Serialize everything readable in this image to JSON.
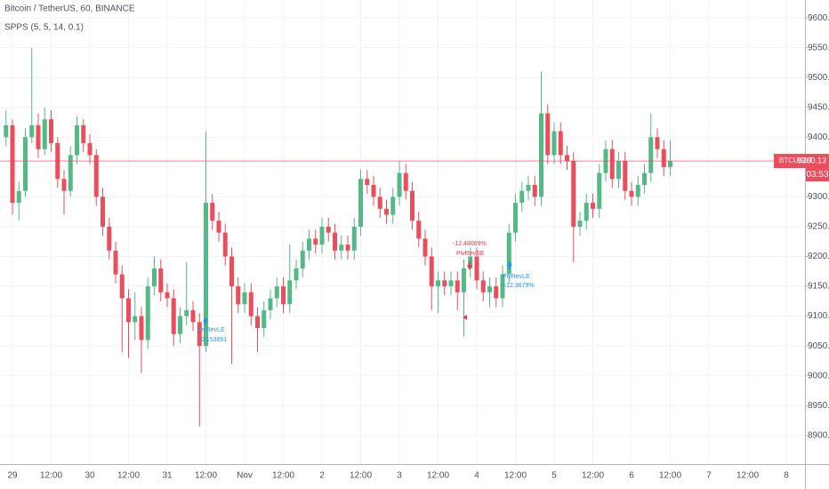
{
  "chart_data": {
    "type": "candlestick",
    "title": "Bitcoin / TetherUS, 60, BINANCE",
    "subtitle": "SPPS (5, 5, 14, 0.1)",
    "symbol": "BTCUSDT",
    "last_price": 9360.13,
    "countdown": "03:53",
    "up_color": "#53b987",
    "down_color": "#eb4d5c",
    "grid": true,
    "ylim": [
      8852,
      9630
    ],
    "yticks": [
      {
        "value": 8900,
        "label": "8900.00"
      },
      {
        "value": 8950,
        "label": "8950.00"
      },
      {
        "value": 9000,
        "label": "9000.00"
      },
      {
        "value": 9050,
        "label": "9050.00"
      },
      {
        "value": 9100,
        "label": "9100.00"
      },
      {
        "value": 9150,
        "label": "9150.00"
      },
      {
        "value": 9200,
        "label": "9200.00"
      },
      {
        "value": 9250,
        "label": "9250.00"
      },
      {
        "value": 9300,
        "label": "9300.00"
      },
      {
        "value": 9350,
        "label": "9350.00"
      },
      {
        "value": 9400,
        "label": "9400.00"
      },
      {
        "value": 9450,
        "label": "9450.00"
      },
      {
        "value": 9500,
        "label": "9500.00"
      },
      {
        "value": 9550,
        "label": "9550.00"
      },
      {
        "value": 9600,
        "label": "9600.00"
      }
    ],
    "annotations": [
      "PivRevLE",
      "+2.153851",
      "-12.48069%",
      "PivRevSE",
      "PivRevLE",
      "+12.3679%"
    ],
    "categories": [
      null,
      "29",
      null,
      null,
      null,
      null,
      null,
      "12:00",
      null,
      null,
      null,
      null,
      null,
      "30",
      null,
      null,
      null,
      null,
      null,
      "12:00",
      null,
      null,
      null,
      null,
      null,
      "31",
      null,
      null,
      null,
      null,
      null,
      "12:00",
      null,
      null,
      null,
      null,
      null,
      "Nov",
      null,
      null,
      null,
      null,
      null,
      "12:00",
      null,
      null,
      null,
      null,
      null,
      "2",
      null,
      null,
      null,
      null,
      null,
      "12:00",
      null,
      null,
      null,
      null,
      null,
      "3",
      null,
      null,
      null,
      null,
      null,
      "12:00",
      null,
      null,
      null,
      null,
      null,
      "4",
      null,
      null,
      null,
      null,
      null,
      "12:00",
      null,
      null,
      null,
      null,
      null,
      "5",
      null,
      null,
      null,
      null,
      null,
      "12:00",
      null,
      null,
      null,
      null,
      null,
      "6",
      null,
      null,
      null,
      null,
      null,
      "12:00",
      null,
      null,
      null,
      null,
      null,
      "7",
      null,
      null,
      null,
      null,
      null,
      "12:00",
      null,
      null,
      null,
      null,
      null,
      "8",
      null
    ],
    "open": [
      9400,
      9420,
      9290,
      9310,
      9400,
      9420,
      9380,
      9430,
      9390,
      9330,
      9310,
      9370,
      9420,
      9390,
      9370,
      9300,
      9250,
      9210,
      9170,
      9130,
      9090,
      9100,
      9060,
      9150,
      9180,
      9140,
      9130,
      9070,
      9100,
      9110,
      9090,
      9050,
      9290,
      9260,
      9240,
      9200,
      9150,
      9120,
      9140,
      9100,
      9080,
      9110,
      9130,
      9150,
      9120,
      9160,
      9180,
      9210,
      9230,
      9220,
      9250,
      9240,
      9210,
      9220,
      9210,
      9250,
      9330,
      9320,
      9300,
      9280,
      9270,
      9300,
      9340,
      9310,
      9260,
      9230,
      9200,
      9150,
      9160,
      9150,
      9160,
      9140,
      9180,
      9200,
      9160,
      9140,
      9150,
      9130,
      9170,
      9240,
      9290,
      9310,
      9320,
      9300,
      9440,
      9370,
      9410,
      9370,
      9360,
      9250,
      9260,
      9290,
      9280,
      9340,
      9380,
      9330,
      9360,
      9310,
      9300,
      9320,
      9340,
      9400,
      9380,
      9350,
      null,
      null,
      null,
      null,
      null,
      null,
      null,
      null,
      null,
      null,
      null,
      null,
      null,
      null,
      null,
      null,
      null,
      null,
      null
    ],
    "high": [
      9445,
      9430,
      9325,
      9415,
      9550,
      9440,
      9450,
      9445,
      9400,
      9345,
      9385,
      9435,
      9430,
      9405,
      9380,
      9315,
      9265,
      9225,
      9185,
      9145,
      9140,
      9115,
      9165,
      9200,
      9195,
      9155,
      9145,
      9115,
      9190,
      9125,
      9105,
      9410,
      9305,
      9275,
      9255,
      9215,
      9165,
      9155,
      9155,
      9115,
      9125,
      9145,
      9165,
      9165,
      9220,
      9195,
      9225,
      9245,
      9245,
      9265,
      9265,
      9255,
      9235,
      9235,
      9265,
      9345,
      9345,
      9335,
      9315,
      9295,
      9315,
      9360,
      9355,
      9325,
      9275,
      9245,
      9215,
      9175,
      9175,
      9175,
      9175,
      9195,
      9215,
      9215,
      9175,
      9165,
      9165,
      9185,
      9255,
      9305,
      9325,
      9335,
      9335,
      9510,
      9455,
      9425,
      9425,
      9385,
      9375,
      9275,
      9305,
      9305,
      9355,
      9395,
      9395,
      9375,
      9375,
      9325,
      9335,
      9355,
      9440,
      9415,
      9395,
      9395,
      null,
      null,
      null,
      null,
      null,
      null,
      null,
      null,
      null,
      null,
      null,
      null,
      null,
      null,
      null,
      null,
      null,
      null,
      null
    ],
    "low": [
      9385,
      9270,
      9260,
      9300,
      9390,
      9365,
      9370,
      9375,
      9315,
      9270,
      9300,
      9355,
      9375,
      9355,
      9285,
      9235,
      9195,
      9155,
      9040,
      9030,
      9060,
      9005,
      9045,
      9135,
      9125,
      9115,
      9050,
      9055,
      9085,
      9075,
      8915,
      9040,
      9245,
      9225,
      9185,
      9020,
      9105,
      9105,
      9085,
      9040,
      9065,
      9095,
      9115,
      9105,
      9105,
      9145,
      9165,
      9195,
      9205,
      9205,
      9225,
      9195,
      9195,
      9195,
      9195,
      9235,
      9305,
      9285,
      9265,
      9255,
      9255,
      9285,
      9295,
      9245,
      9215,
      9185,
      9110,
      9105,
      9135,
      9135,
      9110,
      9065,
      9165,
      9145,
      9125,
      9115,
      9115,
      9115,
      9155,
      9225,
      9275,
      9295,
      9285,
      9285,
      9355,
      9355,
      9355,
      9345,
      9190,
      9235,
      9245,
      9265,
      9265,
      9325,
      9315,
      9315,
      9295,
      9285,
      9285,
      9305,
      9325,
      9365,
      9335,
      9335,
      null,
      null,
      null,
      null,
      null,
      null,
      null,
      null,
      null,
      null,
      null,
      null,
      null,
      null,
      null,
      null,
      null,
      null,
      null
    ],
    "close": [
      9420,
      9290,
      9310,
      9400,
      9420,
      9380,
      9430,
      9390,
      9330,
      9310,
      9370,
      9420,
      9390,
      9370,
      9300,
      9250,
      9210,
      9170,
      9130,
      9090,
      9100,
      9060,
      9150,
      9180,
      9140,
      9130,
      9070,
      9100,
      9110,
      9090,
      9050,
      9290,
      9260,
      9240,
      9200,
      9150,
      9120,
      9140,
      9100,
      9080,
      9110,
      9130,
      9150,
      9120,
      9160,
      9180,
      9210,
      9230,
      9220,
      9250,
      9240,
      9210,
      9220,
      9210,
      9250,
      9330,
      9320,
      9300,
      9280,
      9270,
      9300,
      9340,
      9310,
      9260,
      9230,
      9200,
      9150,
      9160,
      9150,
      9160,
      9140,
      9180,
      9200,
      9160,
      9140,
      9150,
      9130,
      9170,
      9240,
      9290,
      9310,
      9320,
      9300,
      9440,
      9370,
      9410,
      9370,
      9360,
      9250,
      9260,
      9290,
      9280,
      9340,
      9380,
      9330,
      9360,
      9310,
      9300,
      9320,
      9340,
      9400,
      9380,
      9350,
      9360.13,
      null,
      null,
      null,
      null,
      null,
      null,
      null,
      null,
      null,
      null,
      null,
      null,
      null,
      null,
      null,
      null,
      null,
      null,
      null
    ]
  }
}
